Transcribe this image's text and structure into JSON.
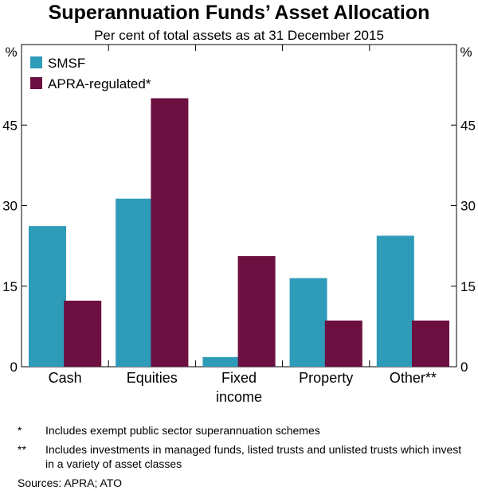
{
  "chart_data": {
    "type": "bar",
    "title": "Superannuation Funds’ Asset Allocation",
    "subtitle": "Per cent of total assets as at 31 December 2015",
    "categories": [
      "Cash",
      "Equities",
      "Fixed income",
      "Property",
      "Other**"
    ],
    "category_lines": [
      [
        "Cash"
      ],
      [
        "Equities"
      ],
      [
        "Fixed",
        "income"
      ],
      [
        "Property"
      ],
      [
        "Other**"
      ]
    ],
    "series": [
      {
        "name": "SMSF",
        "color": "#2E9BB8",
        "values": [
          26.2,
          31.3,
          1.8,
          16.5,
          24.4
        ]
      },
      {
        "name": "APRA-regulated*",
        "color": "#6B1040",
        "values": [
          12.3,
          50.0,
          20.6,
          8.6,
          8.6
        ]
      }
    ],
    "ylim": [
      0,
      60
    ],
    "yticks": [
      0,
      15,
      30,
      45
    ],
    "ylabel_left": "%",
    "ylabel_right": "%",
    "legend_position": "top-left"
  },
  "footnotes": [
    {
      "marker": "*",
      "text": "Includes exempt public sector superannuation schemes"
    },
    {
      "marker": "**",
      "text": "Includes investments in managed funds, listed trusts and unlisted trusts which invest in a variety of asset classes"
    }
  ],
  "sources": "Sources:   APRA; ATO"
}
